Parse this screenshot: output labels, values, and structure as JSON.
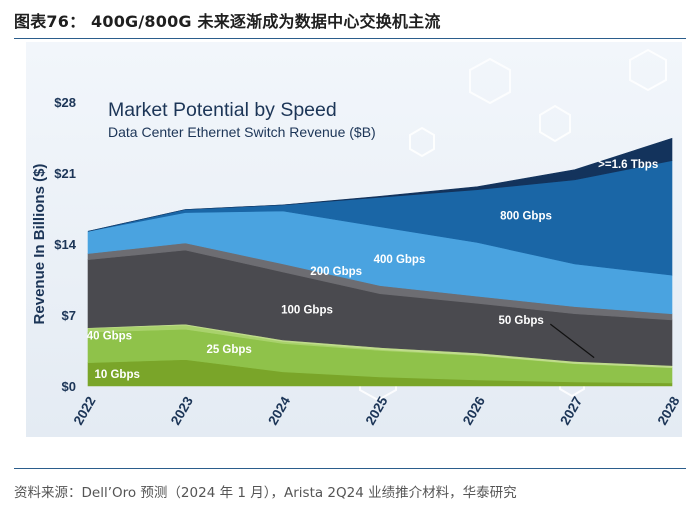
{
  "figure_title": "图表76： 400G/800G 未来逐渐成为数据中心交换机主流",
  "source": "资料来源：Dell’Oro 预测（2024 年 1 月），Arista 2Q24 业绩推介材料，华泰研究",
  "chart_data": {
    "type": "area",
    "stacked": true,
    "title": "Market Potential by Speed",
    "subtitle": "Data Center Ethernet Switch Revenue ($B)",
    "xlabel": "",
    "ylabel": "Revenue In Billions ($)",
    "x": [
      "2022",
      "2023",
      "2024",
      "2025",
      "2026",
      "2027",
      "2028"
    ],
    "ylim": [
      0,
      28
    ],
    "yticks": [
      0,
      7,
      14,
      21,
      28
    ],
    "ytick_labels": [
      "$0",
      "$7",
      "$14",
      "$21",
      "$28"
    ],
    "series": [
      {
        "name": "10 Gbps",
        "label": "10 Gbps",
        "color": "#7aa529",
        "values": [
          2.3,
          2.6,
          1.4,
          0.9,
          0.6,
          0.4,
          0.3
        ]
      },
      {
        "name": "25 Gbps",
        "label": "25 Gbps",
        "color": "#8fc24a",
        "values": [
          3.0,
          3.0,
          2.8,
          2.6,
          2.4,
          1.8,
          1.5
        ]
      },
      {
        "name": "40 Gbps",
        "label": "40 Gbps",
        "color": "#a9d26c",
        "values": [
          0.4,
          0.4,
          0.2,
          0.1,
          0.05,
          0.03,
          0.02
        ]
      },
      {
        "name": "50 Gbps",
        "label": "50 Gbps",
        "color": "#c0dc8c",
        "values": [
          0.05,
          0.1,
          0.15,
          0.2,
          0.2,
          0.2,
          0.2
        ]
      },
      {
        "name": "100 Gbps",
        "label": "100 Gbps",
        "color": "#4a4a4f",
        "values": [
          6.7,
          7.3,
          6.7,
          5.3,
          4.9,
          4.7,
          4.5
        ]
      },
      {
        "name": "200 Gbps",
        "label": "200 Gbps",
        "color": "#6d6d72",
        "values": [
          0.6,
          0.7,
          0.8,
          0.8,
          0.7,
          0.7,
          0.6
        ]
      },
      {
        "name": "400 Gbps",
        "label": "400 Gbps",
        "color": "#4aa3e0",
        "values": [
          2.2,
          3.0,
          5.2,
          5.8,
          5.3,
          4.2,
          3.8
        ]
      },
      {
        "name": "800 Gbps",
        "label": "800 Gbps",
        "color": "#1a66a6",
        "values": [
          0.0,
          0.3,
          0.6,
          2.9,
          5.2,
          8.3,
          11.3
        ]
      },
      {
        "name": ">=1.6 Tbps",
        "label": ">=1.6 Tbps",
        "color": "#13335c",
        "values": [
          0.0,
          0.0,
          0.0,
          0.1,
          0.3,
          1.0,
          2.2
        ]
      }
    ]
  }
}
